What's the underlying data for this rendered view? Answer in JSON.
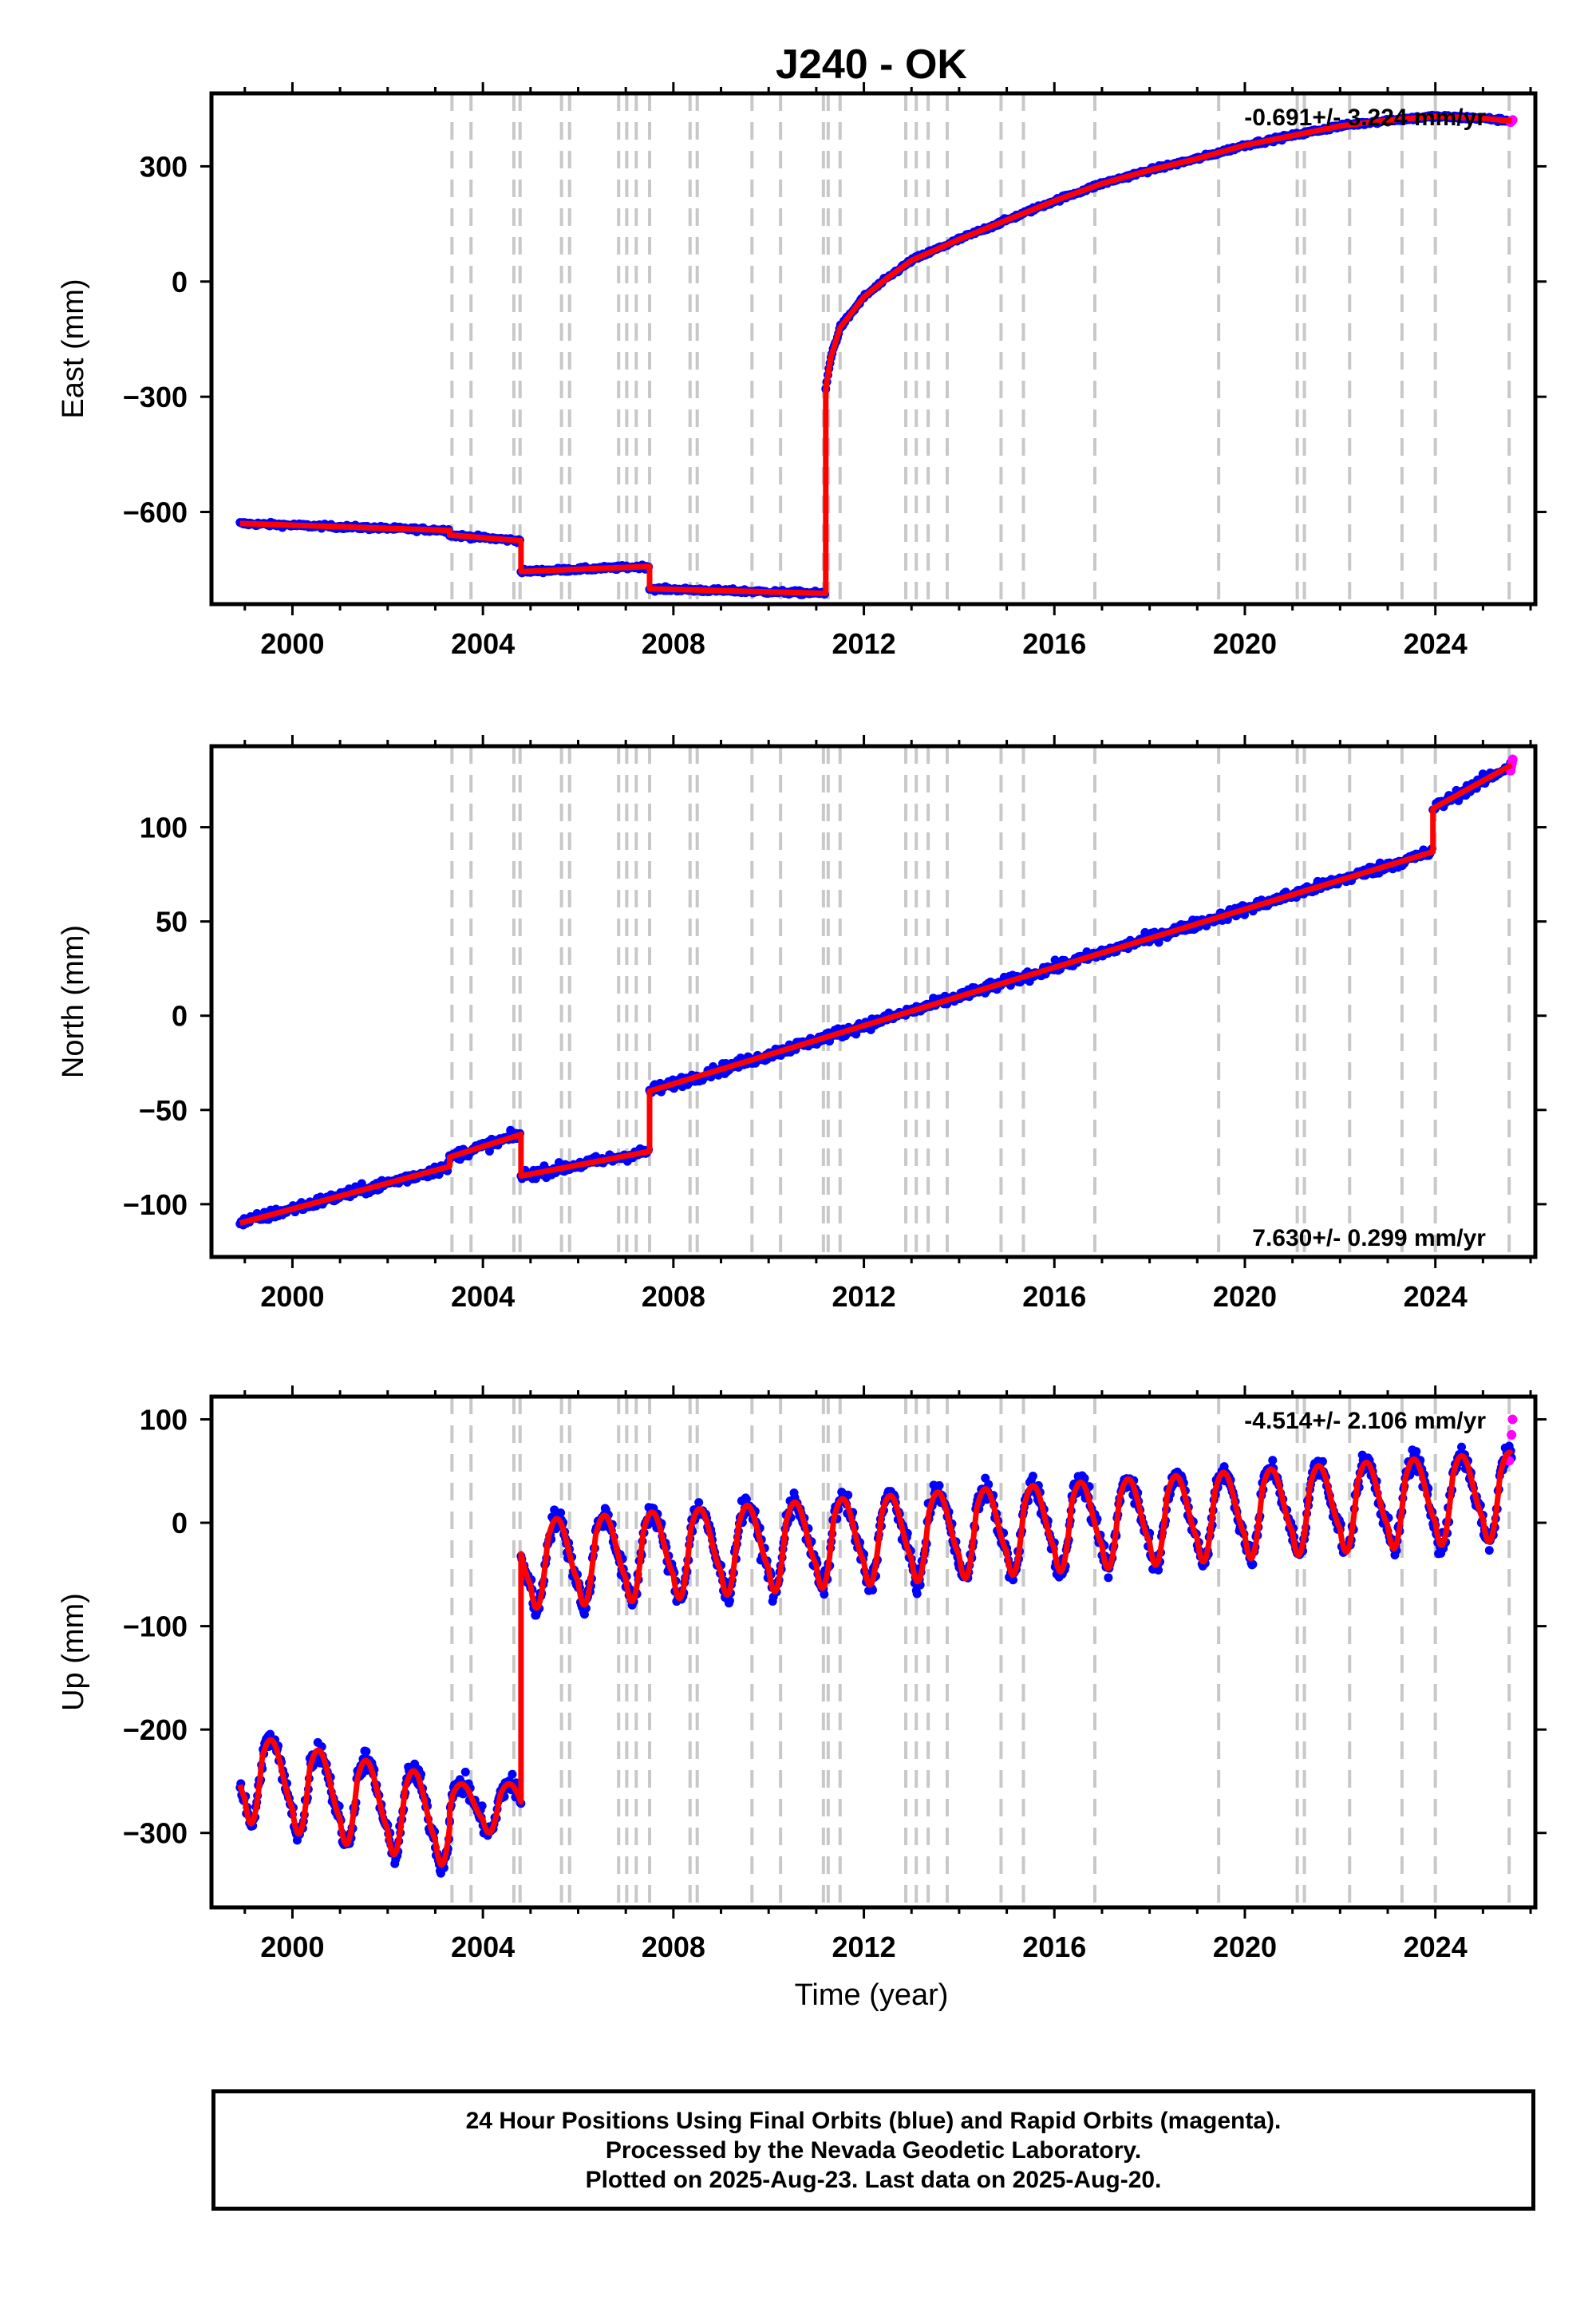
{
  "title": "J240 - OK",
  "x_axis_label": "Time (year)",
  "caption": {
    "line1": "24 Hour Positions Using Final Orbits (blue) and Rapid Orbits (magenta).",
    "line2": "Processed by the Nevada Geodetic Laboratory.",
    "line3": "Plotted on 2025-Aug-23. Last data on 2025-Aug-20."
  },
  "colors": {
    "final_orbits": "#0000ff",
    "rapid_orbits": "#ff00ff",
    "model_fit": "#ff0000",
    "event_lines": "#c8c8c8"
  },
  "chart_data": [
    {
      "type": "scatter",
      "component": "east",
      "ylabel": "East (mm)",
      "rate_text": "-0.691+/- 3.224 mm/yr",
      "rate_position": "top-right",
      "xlim": [
        1998.3,
        2026.1
      ],
      "ylim": [
        -840,
        490
      ],
      "x_ticks": [
        2000,
        2004,
        2008,
        2012,
        2016,
        2020,
        2024
      ],
      "y_ticks": [
        -600,
        -300,
        0,
        300
      ],
      "y_tick_labels": [
        "−600",
        "−300",
        "0",
        "300"
      ],
      "segments": [
        {
          "x": [
            1998.9,
            2003.3
          ],
          "y": [
            -630,
            -648
          ]
        },
        {
          "x": [
            2003.3,
            2004.8
          ],
          "y": [
            -660,
            -675
          ]
        },
        {
          "x": [
            2004.8,
            2007.5
          ],
          "y": [
            -755,
            -742
          ]
        },
        {
          "x": [
            2007.5,
            2011.2
          ],
          "y": [
            -800,
            -812
          ]
        },
        {
          "x": [
            2011.2,
            2011.3,
            2011.5,
            2012,
            2012.5,
            2013,
            2014,
            2015,
            2016,
            2017,
            2018,
            2019,
            2020,
            2021,
            2022,
            2023,
            2024,
            2025,
            2025.6
          ],
          "y": [
            -280,
            -200,
            -120,
            -40,
            10,
            55,
            110,
            160,
            210,
            255,
            290,
            320,
            355,
            380,
            405,
            420,
            430,
            425,
            418
          ]
        }
      ]
    },
    {
      "type": "scatter",
      "component": "north",
      "ylabel": "North (mm)",
      "rate_text": "7.630+/- 0.299 mm/yr",
      "rate_position": "bottom-right",
      "xlim": [
        1998.3,
        2026.1
      ],
      "ylim": [
        -128,
        143
      ],
      "x_ticks": [
        2000,
        2004,
        2008,
        2012,
        2016,
        2020,
        2024
      ],
      "y_ticks": [
        -100,
        -50,
        0,
        50,
        100
      ],
      "y_tick_labels": [
        "−100",
        "−50",
        "0",
        "50",
        "100"
      ],
      "segments": [
        {
          "x": [
            1998.9,
            2003.3
          ],
          "y": [
            -110,
            -80
          ]
        },
        {
          "x": [
            2003.3,
            2004.8
          ],
          "y": [
            -75,
            -63
          ]
        },
        {
          "x": [
            2004.8,
            2007.5
          ],
          "y": [
            -85,
            -72
          ]
        },
        {
          "x": [
            2007.5,
            2023.95
          ],
          "y": [
            -40,
            87
          ]
        },
        {
          "x": [
            2023.95,
            2025.6
          ],
          "y": [
            110,
            133
          ]
        }
      ]
    },
    {
      "type": "scatter",
      "component": "up",
      "ylabel": "Up (mm)",
      "rate_text": "-4.514+/- 2.106 mm/yr",
      "rate_position": "top-right",
      "xlim": [
        1998.3,
        2026.1
      ],
      "ylim": [
        -372,
        122
      ],
      "x_ticks": [
        2000,
        2004,
        2008,
        2012,
        2016,
        2020,
        2024
      ],
      "y_ticks": [
        -300,
        -200,
        -100,
        0,
        100
      ],
      "y_tick_labels": [
        "−300",
        "−200",
        "−100",
        "0",
        "100"
      ],
      "segments": [
        {
          "x": [
            1998.9,
            2003.3
          ],
          "mean": -235,
          "trend": -10,
          "amplitude": 45
        },
        {
          "x": [
            2003.3,
            2004.8
          ],
          "mean": -270,
          "trend": 0,
          "amplitude": 25
        },
        {
          "x": [
            2004.8,
            2025.6
          ],
          "mean": -30,
          "trend": 3.2,
          "amplitude": 45
        }
      ],
      "rapid_orbit_points": {
        "x": [
          2025.55,
          2025.6,
          2025.62
        ],
        "y": [
          60,
          85,
          100
        ]
      }
    }
  ],
  "event_lines_years": [
    2003.35,
    2003.75,
    2004.65,
    2004.78,
    2005.65,
    2005.82,
    2006.85,
    2007.02,
    2007.22,
    2007.5,
    2008.35,
    2008.5,
    2009.65,
    2010.25,
    2011.15,
    2011.25,
    2011.5,
    2012.88,
    2013.1,
    2013.35,
    2013.75,
    2014.88,
    2015.35,
    2016.85,
    2019.45,
    2021.1,
    2021.25,
    2022.2,
    2023.3,
    2024.0,
    2025.55
  ]
}
